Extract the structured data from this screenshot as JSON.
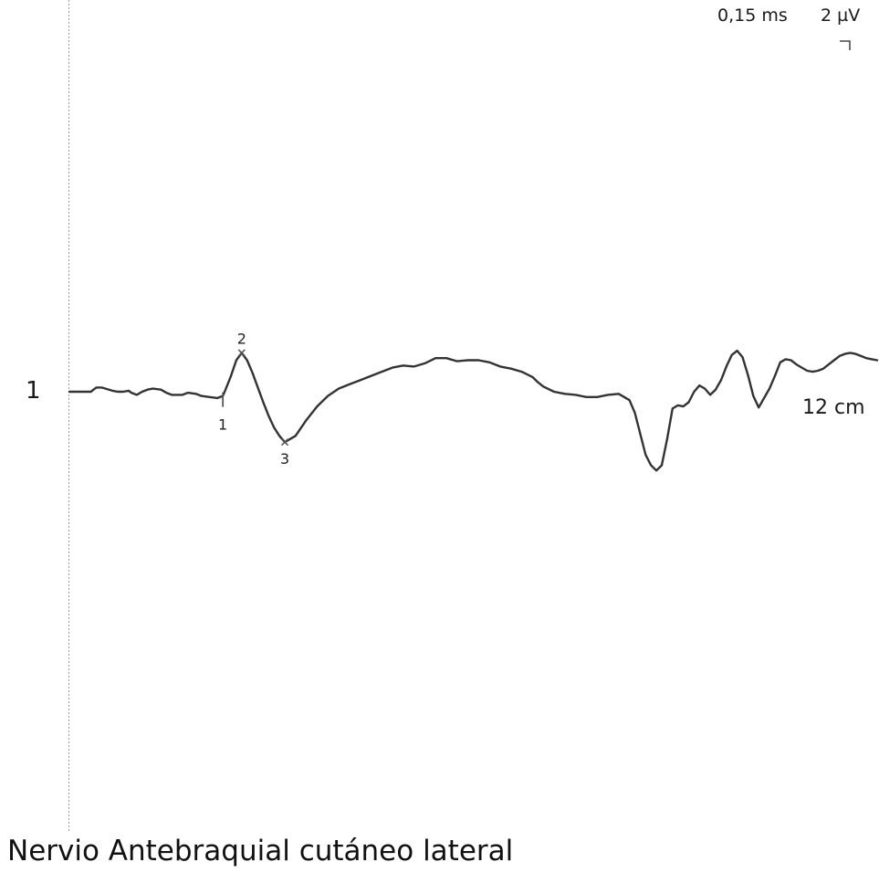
{
  "page": {
    "title": "Nervio Antebraquial cutáneo lateral"
  },
  "scale": {
    "time_per_division": "0,15 ms",
    "amplitude_per_division": "2 µV"
  },
  "trace": {
    "number": "1",
    "distance": "12 cm"
  },
  "colors": {
    "trace": "#333333",
    "marker": "#555555",
    "baseline_dotted": "#9a9a9a"
  },
  "chart_data": {
    "type": "line",
    "x_unit": "ms",
    "y_unit": "µV",
    "xlim": [
      0,
      1.5
    ],
    "ylim": [
      -9,
      9
    ],
    "series": [
      {
        "x": [
          0,
          0.04,
          0.045,
          0.05,
          0.06,
          0.08,
          0.09,
          0.1,
          0.11,
          0.115,
          0.125,
          0.135,
          0.145,
          0.155,
          0.17,
          0.18,
          0.19,
          0.2,
          0.21,
          0.22,
          0.235,
          0.245,
          0.26,
          0.275,
          0.285,
          0.29,
          0.3,
          0.31,
          0.32,
          0.33,
          0.34,
          0.35,
          0.36,
          0.37,
          0.38,
          0.39,
          0.4,
          0.42,
          0.44,
          0.46,
          0.48,
          0.5,
          0.52,
          0.54,
          0.56,
          0.58,
          0.6,
          0.62,
          0.64,
          0.66,
          0.68,
          0.7,
          0.72,
          0.74,
          0.76,
          0.78,
          0.8,
          0.82,
          0.84,
          0.86,
          0.87,
          0.88,
          0.9,
          0.92,
          0.94,
          0.96,
          0.98,
          1.0,
          1.02,
          1.04,
          1.05,
          1.06,
          1.07,
          1.08,
          1.09,
          1.1,
          1.11,
          1.12,
          1.13,
          1.14,
          1.15,
          1.16,
          1.17,
          1.18,
          1.19,
          1.2,
          1.21,
          1.22,
          1.23,
          1.24,
          1.25,
          1.26,
          1.27,
          1.28,
          1.29,
          1.3,
          1.31,
          1.32,
          1.33,
          1.34,
          1.35,
          1.36,
          1.37,
          1.38,
          1.39,
          1.4,
          1.41,
          1.42,
          1.43,
          1.44,
          1.45,
          1.46,
          1.47,
          1.48,
          1.49,
          1.5
        ],
        "y": [
          0,
          0,
          0.2,
          0.4,
          0.4,
          0.1,
          0.0,
          0.0,
          0.1,
          -0.1,
          -0.3,
          0.0,
          0.2,
          0.3,
          0.2,
          -0.1,
          -0.3,
          -0.3,
          -0.3,
          -0.1,
          -0.2,
          -0.4,
          -0.5,
          -0.6,
          -0.4,
          0.2,
          1.5,
          3.0,
          3.7,
          3.0,
          1.8,
          0.4,
          -1.0,
          -2.3,
          -3.4,
          -4.2,
          -4.8,
          -4.2,
          -2.7,
          -1.4,
          -0.4,
          0.3,
          0.7,
          1.1,
          1.5,
          1.9,
          2.3,
          2.5,
          2.4,
          2.7,
          3.2,
          3.2,
          2.9,
          3.0,
          3.0,
          2.8,
          2.4,
          2.2,
          1.9,
          1.4,
          0.9,
          0.5,
          0.0,
          -0.2,
          -0.3,
          -0.5,
          -0.5,
          -0.3,
          -0.2,
          -0.8,
          -2.0,
          -4.0,
          -6.0,
          -7.0,
          -7.5,
          -7.0,
          -4.5,
          -1.6,
          -1.3,
          -1.4,
          -1.0,
          0.0,
          0.6,
          0.3,
          -0.3,
          0.2,
          1.1,
          2.4,
          3.5,
          3.9,
          3.3,
          1.6,
          -0.4,
          -1.5,
          -0.6,
          0.3,
          1.5,
          2.8,
          3.1,
          3.0,
          2.6,
          2.3,
          2.0,
          1.9,
          2.0,
          2.2,
          2.6,
          3.0,
          3.4,
          3.6,
          3.7,
          3.6,
          3.4,
          3.2,
          3.1,
          3.0
        ]
      }
    ],
    "markers": [
      {
        "label": "1",
        "x": 0.285,
        "y": -0.4,
        "style": "tick"
      },
      {
        "label": "2",
        "x": 0.32,
        "y": 3.7,
        "style": "cross"
      },
      {
        "label": "3",
        "x": 0.4,
        "y": -4.8,
        "style": "cross"
      }
    ]
  }
}
